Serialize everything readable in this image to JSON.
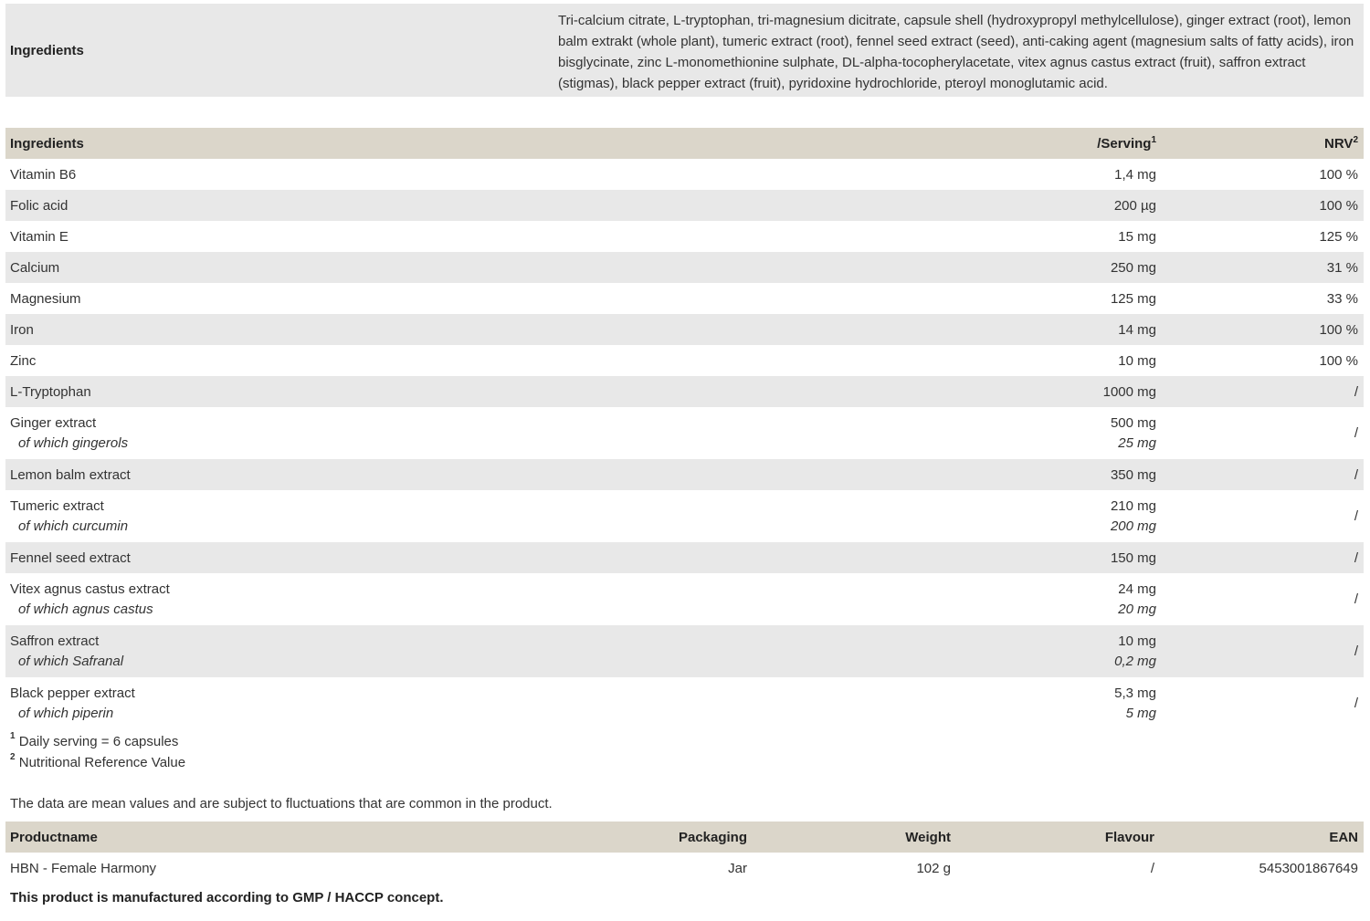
{
  "ingredients_box": {
    "label": "Ingredients",
    "text": "Tri-calcium citrate, L-tryptophan, tri-magnesium dicitrate, capsule shell (hydroxypropyl methylcellulose), ginger extract (root), lemon balm extrakt (whole plant), tumeric extract (root), fennel seed extract (seed), anti-caking agent (magnesium salts of fatty acids), iron bisglycinate, zinc L-monomethionine sulphate, DL-alpha-tocopherylacetate, vitex agnus castus extract (fruit), saffron extract (stigmas), black pepper extract (fruit), pyridoxine hydrochloride, pteroyl monoglutamic acid."
  },
  "nutrition": {
    "headers": {
      "name": "Ingredients",
      "serving": "/Serving",
      "serving_sup": "1",
      "nrv": "NRV",
      "nrv_sup": "2"
    },
    "rows": [
      {
        "name": "Vitamin B6",
        "serving": "1,4 mg",
        "nrv": "100 %"
      },
      {
        "name": "Folic acid",
        "serving": "200 µg",
        "nrv": "100 %"
      },
      {
        "name": "Vitamin E",
        "serving": "15 mg",
        "nrv": "125 %"
      },
      {
        "name": "Calcium",
        "serving": "250 mg",
        "nrv": "31 %"
      },
      {
        "name": "Magnesium",
        "serving": "125 mg",
        "nrv": "33 %"
      },
      {
        "name": "Iron",
        "serving": "14 mg",
        "nrv": "100 %"
      },
      {
        "name": "Zinc",
        "serving": "10 mg",
        "nrv": "100 %"
      },
      {
        "name": "L-Tryptophan",
        "serving": "1000 mg",
        "nrv": "/"
      },
      {
        "name": "Ginger extract",
        "sub": "of which gingerols",
        "serving": "500 mg",
        "sub_serving": "25 mg",
        "nrv": "/"
      },
      {
        "name": "Lemon balm extract",
        "serving": "350 mg",
        "nrv": "/"
      },
      {
        "name": "Tumeric extract",
        "sub": "of which curcumin",
        "serving": "210 mg",
        "sub_serving": "200 mg",
        "nrv": "/"
      },
      {
        "name": "Fennel seed extract",
        "serving": "150 mg",
        "nrv": "/"
      },
      {
        "name": "Vitex agnus castus extract",
        "sub": "of which agnus castus",
        "serving": "24 mg",
        "sub_serving": "20 mg",
        "nrv": "/"
      },
      {
        "name": "Saffron extract",
        "sub": "of which Safranal",
        "serving": "10 mg",
        "sub_serving": "0,2 mg",
        "nrv": "/"
      },
      {
        "name": "Black pepper extract",
        "sub": "of which piperin",
        "serving": "5,3 mg",
        "sub_serving": "5 mg",
        "nrv": "/"
      }
    ]
  },
  "footnotes": [
    {
      "mark": "1",
      "text": "Daily serving = 6 capsules"
    },
    {
      "mark": "2",
      "text": "Nutritional Reference Value"
    }
  ],
  "mean_note": "The data are mean values and are subject to fluctuations that are common in the product.",
  "product": {
    "headers": [
      "Productname",
      "Packaging",
      "Weight",
      "Flavour",
      "EAN"
    ],
    "row": [
      "HBN - Female Harmony",
      "Jar",
      "102 g",
      "/",
      "5453001867649"
    ]
  },
  "gmp_note": "This product is manufactured according to GMP / HACCP concept.",
  "colors": {
    "header_bg": "#dbd6ca",
    "stripe_bg": "#e8e8e8"
  }
}
